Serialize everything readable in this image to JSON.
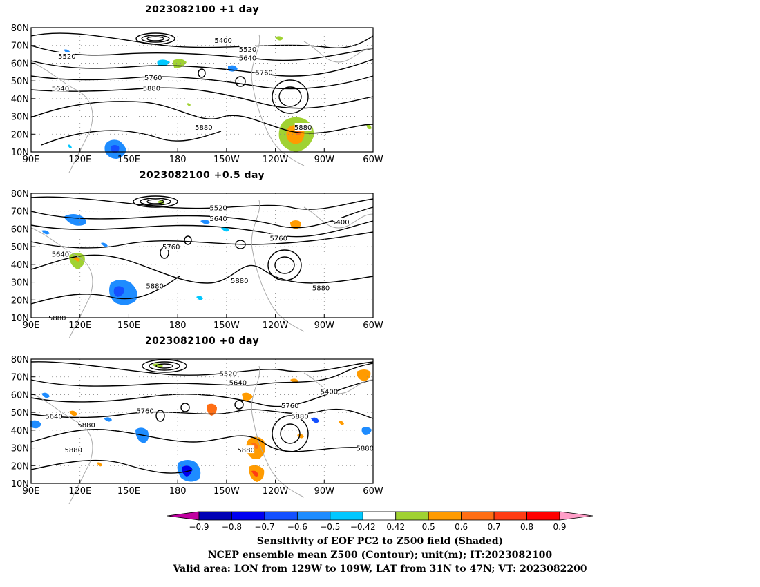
{
  "panels": [
    {
      "title": "2023082100  +1 day",
      "contour_labels": [
        {
          "text": "5400",
          "lon": 208,
          "lat": 73
        },
        {
          "text": "5520",
          "lon": 223,
          "lat": 68
        },
        {
          "text": "5640",
          "lon": 223,
          "lat": 63
        },
        {
          "text": "5520",
          "lon": 112,
          "lat": 64
        },
        {
          "text": "5640",
          "lon": 108,
          "lat": 46
        },
        {
          "text": "5760",
          "lon": 233,
          "lat": 55
        },
        {
          "text": "5760",
          "lon": 165,
          "lat": 52
        },
        {
          "text": "5880",
          "lon": 164,
          "lat": 46
        },
        {
          "text": "5880",
          "lon": 196,
          "lat": 24
        },
        {
          "text": "5880",
          "lon": 257,
          "lat": 24
        }
      ]
    },
    {
      "title": "2023082100  +0.5 day",
      "contour_labels": [
        {
          "text": "5520",
          "lon": 205,
          "lat": 72
        },
        {
          "text": "5640",
          "lon": 205,
          "lat": 66
        },
        {
          "text": "5400",
          "lon": 280,
          "lat": 64
        },
        {
          "text": "5760",
          "lon": 242,
          "lat": 55
        },
        {
          "text": "5760",
          "lon": 176,
          "lat": 50
        },
        {
          "text": "5640",
          "lon": 108,
          "lat": 46
        },
        {
          "text": "5880",
          "lon": 166,
          "lat": 28
        },
        {
          "text": "5880",
          "lon": 218,
          "lat": 31
        },
        {
          "text": "5880",
          "lon": 268,
          "lat": 27
        },
        {
          "text": "5880",
          "lon": 106,
          "lat": 10
        }
      ]
    },
    {
      "title": "2023082100  +0 day",
      "contour_labels": [
        {
          "text": "5520",
          "lon": 211,
          "lat": 72
        },
        {
          "text": "5640",
          "lon": 217,
          "lat": 67
        },
        {
          "text": "5400",
          "lon": 273,
          "lat": 62
        },
        {
          "text": "5760",
          "lon": 249,
          "lat": 54
        },
        {
          "text": "5880",
          "lon": 255,
          "lat": 48
        },
        {
          "text": "5760",
          "lon": 160,
          "lat": 51
        },
        {
          "text": "5640",
          "lon": 104,
          "lat": 48
        },
        {
          "text": "5880",
          "lon": 124,
          "lat": 43
        },
        {
          "text": "5880",
          "lon": 116,
          "lat": 29
        },
        {
          "text": "5880",
          "lon": 222,
          "lat": 29
        },
        {
          "text": "5880",
          "lon": 295,
          "lat": 30
        }
      ]
    }
  ],
  "lat_labels": [
    "80N",
    "70N",
    "60N",
    "50N",
    "40N",
    "30N",
    "20N",
    "10N"
  ],
  "lon_labels": [
    "90E",
    "120E",
    "150E",
    "180",
    "150W",
    "120W",
    "90W",
    "60W"
  ],
  "colorbar": {
    "tick_labels": [
      "−0.9",
      "−0.8",
      "−0.7",
      "−0.6",
      "−0.5",
      "−0.42",
      "0.42",
      "0.5",
      "0.6",
      "0.7",
      "0.8",
      "0.9"
    ],
    "colors": {
      "below": "#c000a0",
      "bins": [
        "#0000b4",
        "#0000f0",
        "#1450ff",
        "#1e8cff",
        "#00c8ff",
        "#ffffff",
        "#a0d232",
        "#ff9b00",
        "#ff6e14",
        "#ff3c14",
        "#ff0000"
      ],
      "above": "#ff9ec8"
    }
  },
  "footer": {
    "line1": "Sensitivity of EOF PC2 to Z500 field (Shaded)",
    "line2": "NCEP ensemble mean Z500 (Contour); unit(m); IT:2023082100",
    "line3": "Valid area: LON from 129W to 109W, LAT from 31N to 47N; VT: 2023082200"
  }
}
